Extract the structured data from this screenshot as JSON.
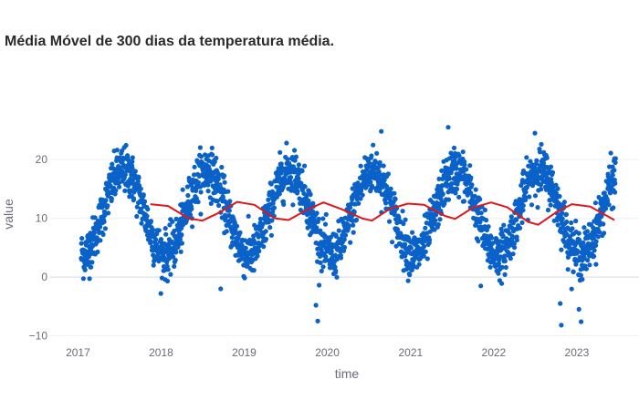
{
  "chart_data": {
    "type": "scatter",
    "title": "Média Móvel de 300 dias da temperatura média.",
    "xlabel": "time",
    "ylabel": "value",
    "x_ticks": [
      "2017",
      "2018",
      "2019",
      "2020",
      "2021",
      "2022",
      "2023"
    ],
    "y_ticks": [
      -10,
      0,
      10,
      20
    ],
    "xlim": [
      "2016-09-01",
      "2023-10-01"
    ],
    "ylim": [
      -11,
      27
    ],
    "grid": "horizontal",
    "legend": "none",
    "colors": {
      "points": "#0a62c9",
      "moving_average": "#e0161b",
      "grid": "#eef0f3"
    },
    "series": [
      {
        "kind": "markers",
        "start": "2017-01-15",
        "end": "2023-06-20",
        "seasonal_model": {
          "mean": 11.0,
          "amplitude": 7.2,
          "peak_day_of_year": 200,
          "noise": 2.0
        },
        "outliers": [
          {
            "x": "2018-09-20",
            "y": -2.0
          },
          {
            "x": "2019-11-12",
            "y": -4.8
          },
          {
            "x": "2019-11-20",
            "y": -7.5
          },
          {
            "x": "2021-11-05",
            "y": -1.5
          },
          {
            "x": "2022-10-20",
            "y": -4.5
          },
          {
            "x": "2022-10-25",
            "y": -8.2
          },
          {
            "x": "2023-01-10",
            "y": -5.5
          },
          {
            "x": "2023-01-20",
            "y": -7.6
          },
          {
            "x": "2020-08-25",
            "y": 24.8
          },
          {
            "x": "2021-06-15",
            "y": 25.5
          },
          {
            "x": "2022-07-01",
            "y": 24.5
          }
        ]
      },
      {
        "kind": "line",
        "points": [
          {
            "x": "2017-11-15",
            "y": 12.4
          },
          {
            "x": "2018-02-01",
            "y": 12.1
          },
          {
            "x": "2018-05-01",
            "y": 10.0
          },
          {
            "x": "2018-07-01",
            "y": 9.6
          },
          {
            "x": "2018-09-15",
            "y": 11.0
          },
          {
            "x": "2018-12-01",
            "y": 12.8
          },
          {
            "x": "2019-02-15",
            "y": 12.3
          },
          {
            "x": "2019-05-15",
            "y": 10.0
          },
          {
            "x": "2019-07-15",
            "y": 9.7
          },
          {
            "x": "2019-10-01",
            "y": 11.4
          },
          {
            "x": "2019-12-15",
            "y": 12.7
          },
          {
            "x": "2020-03-01",
            "y": 11.6
          },
          {
            "x": "2020-06-01",
            "y": 10.0
          },
          {
            "x": "2020-07-15",
            "y": 9.6
          },
          {
            "x": "2020-10-01",
            "y": 11.6
          },
          {
            "x": "2020-12-20",
            "y": 12.5
          },
          {
            "x": "2021-03-01",
            "y": 12.3
          },
          {
            "x": "2021-06-01",
            "y": 10.4
          },
          {
            "x": "2021-07-15",
            "y": 9.9
          },
          {
            "x": "2021-10-01",
            "y": 11.8
          },
          {
            "x": "2021-12-20",
            "y": 12.7
          },
          {
            "x": "2022-03-01",
            "y": 11.9
          },
          {
            "x": "2022-06-01",
            "y": 9.4
          },
          {
            "x": "2022-07-15",
            "y": 8.9
          },
          {
            "x": "2022-10-01",
            "y": 11.0
          },
          {
            "x": "2022-12-10",
            "y": 12.4
          },
          {
            "x": "2023-03-01",
            "y": 12.0
          },
          {
            "x": "2023-06-15",
            "y": 9.7
          }
        ]
      }
    ]
  }
}
